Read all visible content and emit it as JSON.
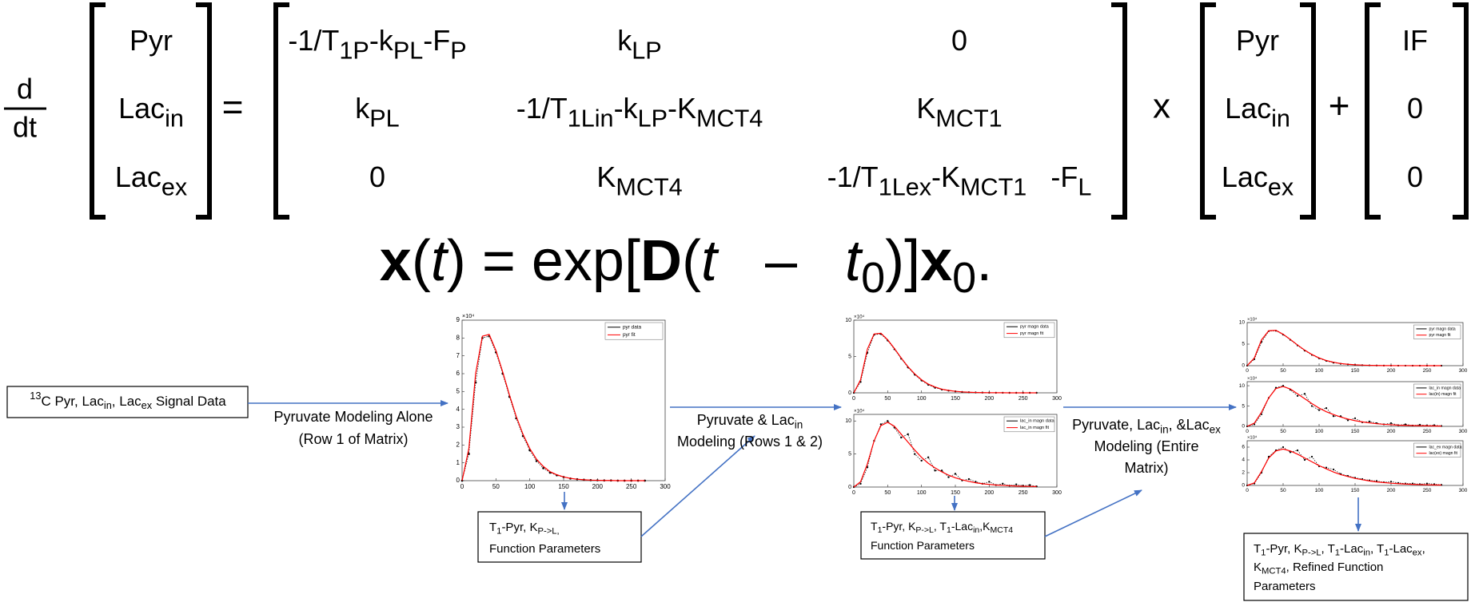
{
  "equation": {
    "derivative": {
      "numerator": "d",
      "denominator": "dt"
    },
    "state_vector": [
      [
        "Pyr"
      ],
      [
        "Lac",
        {
          "sub": "in"
        }
      ],
      [
        "Lac",
        {
          "sub": "ex"
        }
      ]
    ],
    "equals": "=",
    "matrix": [
      [
        [
          "-1/T",
          {
            "sub": "1P"
          },
          "-k",
          {
            "sub": "PL"
          },
          "-F",
          {
            "sub": "P"
          }
        ],
        [
          "k",
          {
            "sub": "LP"
          }
        ],
        [
          "0"
        ]
      ],
      [
        [
          "k",
          {
            "sub": "PL"
          }
        ],
        [
          "-1/T",
          {
            "sub": "1Lin"
          },
          "-k",
          {
            "sub": "LP"
          },
          "-K",
          {
            "sub": "MCT4"
          }
        ],
        [
          "K",
          {
            "sub": "MCT1"
          }
        ]
      ],
      [
        [
          "0"
        ],
        [
          "K",
          {
            "sub": "MCT4"
          }
        ],
        [
          "-1/T",
          {
            "sub": "1Lex"
          },
          "-K",
          {
            "sub": "MCT1"
          },
          "   -F",
          {
            "sub": "L"
          }
        ]
      ]
    ],
    "times": "x",
    "state_vector_2": [
      [
        "Pyr"
      ],
      [
        "Lac",
        {
          "sub": "in"
        }
      ],
      [
        "Lac",
        {
          "sub": "ex"
        }
      ]
    ],
    "plus": "+",
    "input_vector": [
      [
        "IF"
      ],
      [
        "0"
      ],
      [
        "0"
      ]
    ]
  },
  "solution": [
    {
      "b": "x"
    },
    "(",
    {
      "i": "t"
    },
    ") = exp[",
    {
      "b": "D"
    },
    "(",
    {
      "i": "t"
    },
    "   –   ",
    {
      "i": "t"
    },
    {
      "sub": "0"
    },
    ")]",
    {
      "b": "x"
    },
    {
      "sub": "0"
    },
    "."
  ],
  "flow": {
    "input_box": [
      {
        "sup": "13"
      },
      "C Pyr, Lac",
      {
        "sub": "in"
      },
      ", Lac",
      {
        "sub": "ex"
      },
      " Signal Data"
    ],
    "steps": [
      {
        "label_lines": [
          [
            "Pyruvate Modeling Alone"
          ],
          [
            "(Row 1 of Matrix)"
          ]
        ],
        "output_lines": [
          [
            "T",
            {
              "sub": "1"
            },
            "-Pyr, K",
            {
              "sub": "P->L,"
            }
          ],
          [
            "Function Parameters"
          ]
        ]
      },
      {
        "label_lines": [
          [
            "Pyruvate & Lac",
            {
              "sub": "in"
            }
          ],
          [
            "Modeling (Rows 1 & 2)"
          ]
        ],
        "output_lines": [
          [
            "T",
            {
              "sub": "1"
            },
            "-Pyr, K",
            {
              "sub": "P->L"
            },
            ", T",
            {
              "sub": "1"
            },
            "-Lac",
            {
              "sub": "in"
            },
            ",K",
            {
              "sub": "MCT4"
            }
          ],
          [
            "Function Parameters"
          ]
        ]
      },
      {
        "label_lines": [
          [
            "Pyruvate, Lac",
            {
              "sub": "in"
            },
            ", &Lac",
            {
              "sub": "ex"
            }
          ],
          [
            "Modeling (Entire"
          ],
          [
            "Matrix)"
          ]
        ],
        "output_lines": [
          [
            "T",
            {
              "sub": "1"
            },
            "-Pyr, K",
            {
              "sub": "P->L"
            },
            ", T",
            {
              "sub": "1"
            },
            "-Lac",
            {
              "sub": "in"
            },
            ", T",
            {
              "sub": "1"
            },
            "-Lac",
            {
              "sub": "ex"
            },
            ","
          ],
          [
            "K",
            {
              "sub": "MCT4"
            },
            ", Refined Function"
          ],
          [
            "Parameters"
          ]
        ]
      }
    ],
    "plots": [
      {
        "type": "line",
        "exponent": "×10⁴",
        "x": [
          0,
          10,
          20,
          30,
          40,
          50,
          60,
          70,
          80,
          90,
          100,
          110,
          120,
          130,
          140,
          150,
          160,
          170,
          180,
          190,
          200,
          210,
          220,
          230,
          240,
          250,
          260,
          270
        ],
        "xlim": [
          0,
          300
        ],
        "xticks": [
          0,
          50,
          100,
          150,
          200,
          250,
          300
        ],
        "ylim": [
          0,
          9
        ],
        "yticks": [
          0,
          1,
          2,
          3,
          4,
          5,
          6,
          7,
          8,
          9
        ],
        "series": [
          {
            "name": "pyr data",
            "color": "#000000",
            "values": [
              0,
              1.5,
              5.5,
              8,
              8.1,
              7.2,
              6,
              4.7,
              3.5,
              2.5,
              1.7,
              1.1,
              0.7,
              0.45,
              0.3,
              0.2,
              0.12,
              0.08,
              0.05,
              0.03,
              0.02,
              0.01,
              0.01,
              0,
              0,
              0,
              0,
              0
            ]
          },
          {
            "name": "pyr fit",
            "color": "#ff0000",
            "values": [
              0,
              1.8,
              6,
              8.1,
              8.2,
              7.3,
              6.1,
              4.8,
              3.6,
              2.6,
              1.8,
              1.2,
              0.8,
              0.5,
              0.33,
              0.21,
              0.13,
              0.08,
              0.05,
              0.03,
              0.02,
              0.01,
              0.01,
              0,
              0,
              0,
              0,
              0
            ]
          }
        ]
      },
      {
        "type": "line",
        "exponent": "×10⁴",
        "x": [
          0,
          10,
          20,
          30,
          40,
          50,
          60,
          70,
          80,
          90,
          100,
          110,
          120,
          130,
          140,
          150,
          160,
          170,
          180,
          190,
          200,
          210,
          220,
          230,
          240,
          250,
          260,
          270
        ],
        "xlim": [
          0,
          300
        ],
        "xticks": [
          0,
          50,
          100,
          150,
          200,
          250,
          300
        ],
        "ylim": [
          0,
          10
        ],
        "yticks": [
          0,
          5,
          10
        ],
        "series": [
          {
            "name": "pyr magn data",
            "color": "#000000",
            "values": [
              0,
              1.5,
              5.5,
              8,
              8.1,
              7.2,
              6,
              4.7,
              3.5,
              2.5,
              1.7,
              1.1,
              0.7,
              0.45,
              0.3,
              0.2,
              0.12,
              0.08,
              0.05,
              0.03,
              0.02,
              0.01,
              0.01,
              0,
              0,
              0,
              0,
              0
            ]
          },
          {
            "name": "pyr magn fit",
            "color": "#ff0000",
            "values": [
              0,
              1.8,
              6,
              8.1,
              8.2,
              7.3,
              6.1,
              4.8,
              3.6,
              2.6,
              1.8,
              1.2,
              0.8,
              0.5,
              0.33,
              0.21,
              0.13,
              0.08,
              0.05,
              0.03,
              0.02,
              0.01,
              0.01,
              0,
              0,
              0,
              0,
              0
            ]
          }
        ]
      },
      {
        "type": "line",
        "exponent": "×10⁴",
        "x": [
          0,
          10,
          20,
          30,
          40,
          50,
          60,
          70,
          80,
          90,
          100,
          110,
          120,
          130,
          140,
          150,
          160,
          170,
          180,
          190,
          200,
          210,
          220,
          230,
          240,
          250,
          260,
          270
        ],
        "xlim": [
          0,
          300
        ],
        "xticks": [
          0,
          50,
          100,
          150,
          200,
          250,
          300
        ],
        "ylim": [
          0,
          11
        ],
        "yticks": [
          0,
          5,
          10
        ],
        "series": [
          {
            "name": "lac_in magn data",
            "color": "#000000",
            "values": [
              0,
              0.5,
              3,
              7,
              9.5,
              10,
              9,
              7.5,
              8,
              5,
              4,
              4.5,
              2.5,
              2.5,
              1.5,
              2,
              1,
              1.2,
              0.8,
              0.5,
              0.8,
              0.3,
              0.5,
              0.2,
              0.4,
              0.2,
              0.3,
              0.1
            ]
          },
          {
            "name": "lac_in magn fit",
            "color": "#ff0000",
            "values": [
              0,
              0.8,
              3.5,
              7,
              9.3,
              9.8,
              9.2,
              8,
              6.8,
              5.6,
              4.5,
              3.6,
              2.9,
              2.3,
              1.8,
              1.4,
              1.1,
              0.85,
              0.65,
              0.5,
              0.4,
              0.3,
              0.25,
              0.2,
              0.15,
              0.12,
              0.1,
              0.08
            ]
          }
        ]
      },
      {
        "type": "line",
        "exponent": "×10⁴",
        "x": [
          0,
          10,
          20,
          30,
          40,
          50,
          60,
          70,
          80,
          90,
          100,
          110,
          120,
          130,
          140,
          150,
          160,
          170,
          180,
          190,
          200,
          210,
          220,
          230,
          240,
          250,
          260,
          270
        ],
        "xlim": [
          0,
          300
        ],
        "xticks": [
          0,
          50,
          100,
          150,
          200,
          250,
          300
        ],
        "ylim": [
          0,
          10
        ],
        "yticks": [
          0,
          5,
          10
        ],
        "series": [
          {
            "name": "pyr magn data",
            "color": "#000000",
            "values": [
              0,
              1.5,
              5.5,
              8,
              8.1,
              7.2,
              6,
              4.7,
              3.5,
              2.5,
              1.7,
              1.1,
              0.7,
              0.45,
              0.3,
              0.2,
              0.12,
              0.08,
              0.05,
              0.03,
              0.02,
              0.01,
              0.01,
              0,
              0,
              0,
              0,
              0
            ]
          },
          {
            "name": "pyr magn fit",
            "color": "#ff0000",
            "values": [
              0,
              1.8,
              6,
              8.1,
              8.2,
              7.3,
              6.1,
              4.8,
              3.6,
              2.6,
              1.8,
              1.2,
              0.8,
              0.5,
              0.33,
              0.21,
              0.13,
              0.08,
              0.05,
              0.03,
              0.02,
              0.01,
              0.01,
              0,
              0,
              0,
              0,
              0
            ]
          }
        ]
      },
      {
        "type": "line",
        "exponent": "×10⁴",
        "x": [
          0,
          10,
          20,
          30,
          40,
          50,
          60,
          70,
          80,
          90,
          100,
          110,
          120,
          130,
          140,
          150,
          160,
          170,
          180,
          190,
          200,
          210,
          220,
          230,
          240,
          250,
          260,
          270
        ],
        "xlim": [
          0,
          300
        ],
        "xticks": [
          0,
          50,
          100,
          150,
          200,
          250,
          300
        ],
        "ylim": [
          0,
          11
        ],
        "yticks": [
          0,
          5,
          10
        ],
        "series": [
          {
            "name": "lac_in magn data",
            "color": "#000000",
            "values": [
              0,
              0.5,
              3,
              7,
              9.5,
              10,
              9,
              7.5,
              8,
              5,
              4,
              4.5,
              2.5,
              2.5,
              1.5,
              2,
              1,
              1.2,
              0.8,
              0.5,
              0.8,
              0.3,
              0.5,
              0.2,
              0.4,
              0.2,
              0.3,
              0.1
            ]
          },
          {
            "name": "lac(in) magn fit",
            "color": "#ff0000",
            "values": [
              0,
              0.8,
              3.5,
              7,
              9.3,
              9.8,
              9.2,
              8,
              6.8,
              5.6,
              4.5,
              3.6,
              2.9,
              2.3,
              1.8,
              1.4,
              1.1,
              0.85,
              0.65,
              0.5,
              0.4,
              0.3,
              0.25,
              0.2,
              0.15,
              0.12,
              0.1,
              0.08
            ]
          }
        ]
      },
      {
        "type": "line",
        "exponent": "×10⁴",
        "x": [
          0,
          10,
          20,
          30,
          40,
          50,
          60,
          70,
          80,
          90,
          100,
          110,
          120,
          130,
          140,
          150,
          160,
          170,
          180,
          190,
          200,
          210,
          220,
          230,
          240,
          250,
          260,
          270
        ],
        "xlim": [
          0,
          300
        ],
        "xticks": [
          0,
          50,
          100,
          150,
          200,
          250,
          300
        ],
        "ylim": [
          0,
          7
        ],
        "yticks": [
          0,
          2,
          4,
          6
        ],
        "series": [
          {
            "name": "lac_ex magn data",
            "color": "#000000",
            "values": [
              0,
              0.3,
              2,
              4.5,
              5.5,
              6,
              5.2,
              5.5,
              4,
              4.5,
              3,
              2.8,
              2.5,
              1.8,
              1.5,
              1.2,
              1,
              0.8,
              0.7,
              0.5,
              0.6,
              0.4,
              0.3,
              0.3,
              0.2,
              0.3,
              0.2,
              0.1
            ]
          },
          {
            "name": "lac(ex) magn fit",
            "color": "#ff0000",
            "values": [
              0,
              0.4,
              2.2,
              4.3,
              5.4,
              5.7,
              5.4,
              4.9,
              4.3,
              3.7,
              3.1,
              2.6,
              2.1,
              1.7,
              1.4,
              1.1,
              0.9,
              0.7,
              0.55,
              0.45,
              0.35,
              0.28,
              0.22,
              0.17,
              0.13,
              0.1,
              0.08,
              0.06
            ]
          }
        ]
      }
    ]
  }
}
